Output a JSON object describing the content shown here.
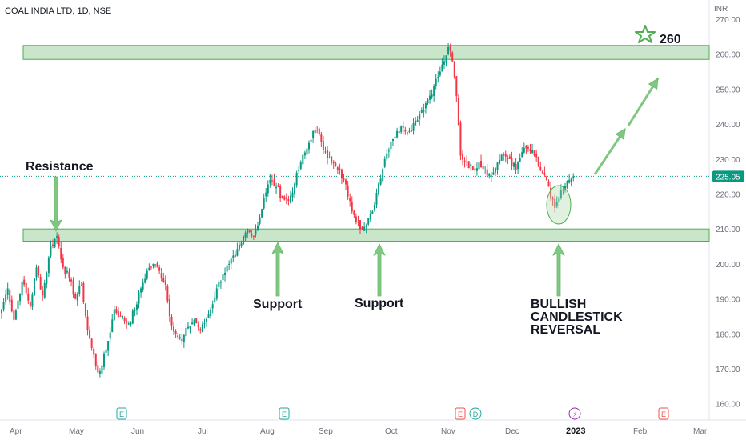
{
  "chart_data": {
    "type": "candlestick",
    "title": "COAL INDIA LTD, 1D, NSE",
    "currency": "INR",
    "current_price": "225.05",
    "y_ticks": [
      "270.00",
      "260.00",
      "250.00",
      "240.00",
      "230.00",
      "220.00",
      "210.00",
      "200.00",
      "190.00",
      "180.00",
      "170.00",
      "160.00"
    ],
    "y_tick_values": [
      270,
      260,
      250,
      240,
      230,
      220,
      210,
      200,
      190,
      180,
      170,
      160
    ],
    "ylim": [
      157,
      272
    ],
    "x_ticks": [
      "Apr",
      "May",
      "Jun",
      "Jul",
      "Aug",
      "Sep",
      "Oct",
      "Nov",
      "Dec",
      "2023",
      "Feb",
      "Mar"
    ],
    "x_tick_bold": "2023",
    "zones": [
      {
        "label": "resistance-zone",
        "low": 258.5,
        "high": 262.5
      },
      {
        "label": "support-zone",
        "low": 206.5,
        "high": 210.0
      }
    ],
    "annotations": {
      "resistance": "Resistance",
      "support_1": "Support",
      "support_2": "Support",
      "bullish_line_1": "BULLISH",
      "bullish_line_2": "CANDLESTICK",
      "bullish_line_3": "REVERSAL",
      "target": "260"
    },
    "event_markers": [
      {
        "glyph": "E",
        "color": "#26a69a"
      },
      {
        "glyph": "E",
        "color": "#26a69a"
      },
      {
        "glyph": "E",
        "color": "#ef5350"
      },
      {
        "glyph": "D",
        "color": "#26a69a"
      },
      {
        "glyph": "⚡",
        "color": "#9c27b0"
      },
      {
        "glyph": "E",
        "color": "#ef5350"
      }
    ],
    "colors": {
      "up": "#089981",
      "down": "#f23645",
      "zone": "#a5d6a7",
      "arrow": "#81c784",
      "price_line": "#089981"
    },
    "anchors": [
      [
        0,
        187
      ],
      [
        3,
        193
      ],
      [
        6,
        184
      ],
      [
        10,
        195
      ],
      [
        14,
        188
      ],
      [
        17,
        199
      ],
      [
        20,
        191
      ],
      [
        24,
        205
      ],
      [
        27,
        208
      ],
      [
        30,
        199
      ],
      [
        33,
        196
      ],
      [
        36,
        190
      ],
      [
        39,
        194
      ],
      [
        42,
        181
      ],
      [
        44,
        176
      ],
      [
        47,
        169
      ],
      [
        49,
        171
      ],
      [
        52,
        178
      ],
      [
        55,
        187
      ],
      [
        58,
        185
      ],
      [
        62,
        183
      ],
      [
        65,
        187
      ],
      [
        68,
        193
      ],
      [
        71,
        198
      ],
      [
        74,
        200
      ],
      [
        77,
        198
      ],
      [
        80,
        194
      ],
      [
        82,
        185
      ],
      [
        85,
        180
      ],
      [
        88,
        178
      ],
      [
        91,
        182
      ],
      [
        94,
        184
      ],
      [
        97,
        181
      ],
      [
        99,
        183
      ],
      [
        102,
        187
      ],
      [
        105,
        193
      ],
      [
        108,
        197
      ],
      [
        111,
        200
      ],
      [
        114,
        202
      ],
      [
        117,
        206
      ],
      [
        120,
        210
      ],
      [
        122,
        208
      ],
      [
        125,
        211
      ],
      [
        128,
        219
      ],
      [
        131,
        224
      ],
      [
        134,
        222
      ],
      [
        137,
        219
      ],
      [
        140,
        218
      ],
      [
        143,
        223
      ],
      [
        146,
        229
      ],
      [
        149,
        233
      ],
      [
        152,
        238
      ],
      [
        155,
        237
      ],
      [
        158,
        232
      ],
      [
        161,
        229
      ],
      [
        164,
        227
      ],
      [
        167,
        224
      ],
      [
        170,
        218
      ],
      [
        172,
        214
      ],
      [
        174,
        212
      ],
      [
        176,
        210
      ],
      [
        178,
        211
      ],
      [
        181,
        215
      ],
      [
        184,
        223
      ],
      [
        187,
        230
      ],
      [
        190,
        235
      ],
      [
        193,
        238
      ],
      [
        196,
        239
      ],
      [
        199,
        238
      ],
      [
        202,
        241
      ],
      [
        205,
        244
      ],
      [
        208,
        247
      ],
      [
        211,
        251
      ],
      [
        214,
        255
      ],
      [
        216,
        258
      ],
      [
        218,
        262
      ],
      [
        220,
        258
      ],
      [
        222,
        248
      ],
      [
        224,
        231
      ],
      [
        227,
        229
      ],
      [
        230,
        227
      ],
      [
        233,
        229
      ],
      [
        236,
        227
      ],
      [
        239,
        225
      ],
      [
        242,
        229
      ],
      [
        245,
        231
      ],
      [
        248,
        230
      ],
      [
        251,
        227
      ],
      [
        254,
        232
      ],
      [
        257,
        233
      ],
      [
        260,
        231
      ],
      [
        263,
        227
      ],
      [
        266,
        224
      ],
      [
        268,
        219
      ],
      [
        270,
        216
      ],
      [
        272,
        219
      ],
      [
        274,
        221
      ],
      [
        277,
        224
      ],
      [
        279,
        225.05
      ]
    ],
    "x_axis_units": "trading sessions since start of visible range",
    "target_value": 260
  }
}
